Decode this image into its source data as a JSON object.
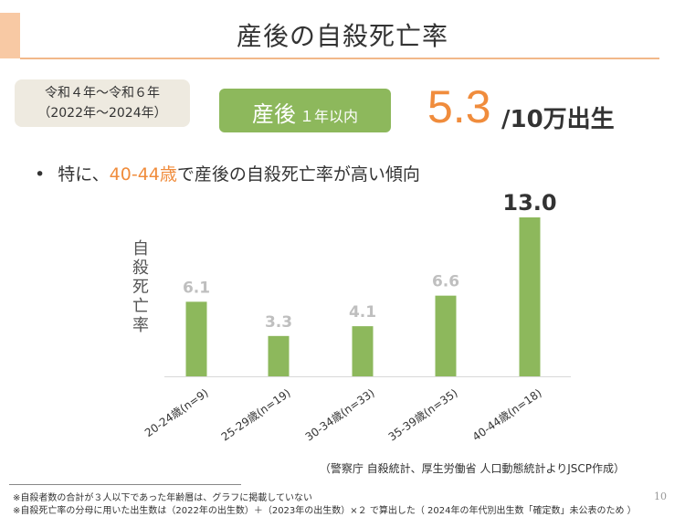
{
  "slide": {
    "title": "産後の自殺死亡率",
    "period_line1": "令和４年～令和６年",
    "period_line2": "（2022年～2024年）",
    "badge_main": "産後",
    "badge_sub": "１年以内",
    "headline_value": "5.3",
    "headline_unit": "/10万出生",
    "bullet_dot": "•",
    "bullet_prefix": "特に、",
    "bullet_highlight": "40-44歳",
    "bullet_suffix": "で産後の自殺死亡率が高い傾向",
    "source": "（警察庁 自殺統計、厚生労働省 人口動態統計よりJSCP作成）",
    "note1": "※自殺者数の合計が３人以下であった年齢層は、グラフに掲載していない",
    "note2": "※自殺死亡率の分母に用いた出生数は（2022年の出生数）＋（2023年の出生数）×２ で算出した（ 2024年の年代別出生数「確定数」未公表のため ）",
    "page_number": "10"
  },
  "colors": {
    "accent": "#f08c3c",
    "bar": "#8db85c",
    "badge": "#8db85c",
    "label_gray": "#bfbfbf",
    "highlight_label": "#333333"
  },
  "chart_data": {
    "type": "bar",
    "title": "",
    "xlabel": "",
    "ylabel": "自殺死亡率",
    "categories": [
      "20-24歳(n=9)",
      "25-29歳(n=19)",
      "30-34歳(n=33)",
      "35-39歳(n=35)",
      "40-44歳(n=18)"
    ],
    "values": [
      6.1,
      3.3,
      4.1,
      6.6,
      13.0
    ],
    "value_labels": [
      "6.1",
      "3.3",
      "4.1",
      "6.6",
      "13.0"
    ],
    "highlight_index": 4,
    "ylim": [
      0,
      13.0
    ]
  }
}
